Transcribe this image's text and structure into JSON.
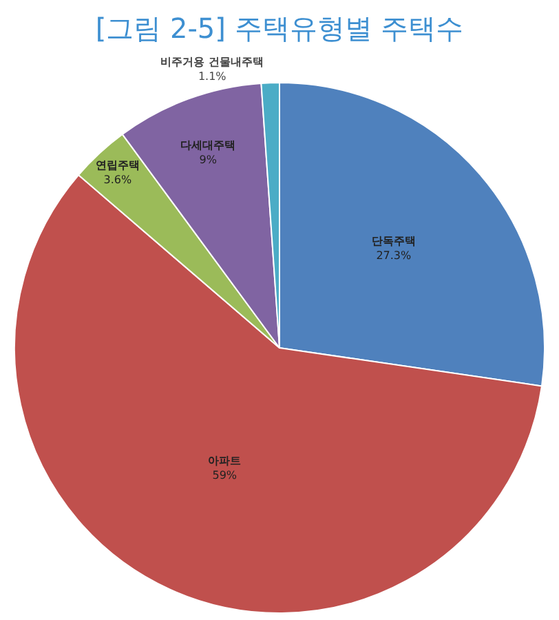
{
  "chart_data": {
    "type": "pie",
    "title": "[그림 2-5] 주택유형별 주택수",
    "categories": [
      "단독주택",
      "아파트",
      "연립주택",
      "다세대주택",
      "비주거용 건물내주택"
    ],
    "values": [
      27.3,
      59,
      3.6,
      9,
      1.1
    ],
    "value_labels": [
      "27.3%",
      "59%",
      "3.6%",
      "9%",
      "1.1%"
    ],
    "colors": [
      "#4f81bd",
      "#c0504d",
      "#9bbb59",
      "#8064a2",
      "#4bacc6"
    ],
    "legend": false
  }
}
